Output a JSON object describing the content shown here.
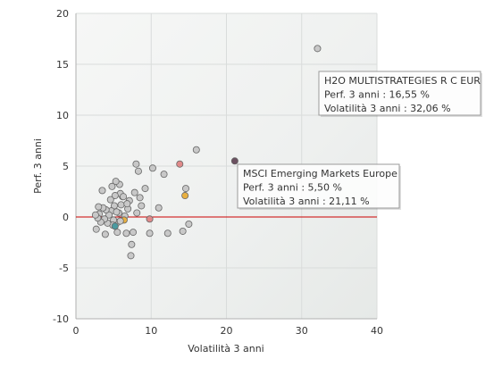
{
  "chart_data": {
    "type": "scatter",
    "xlabel": "Volatilità 3 anni",
    "ylabel": "Perf. 3 anni",
    "xlim": [
      0,
      40
    ],
    "ylim": [
      -10,
      20
    ],
    "x_ticks": [
      "0",
      "10",
      "20",
      "30",
      "40"
    ],
    "y_ticks": [
      "-10",
      "-5",
      "0",
      "5",
      "10",
      "15",
      "20"
    ],
    "x_tick_values": [
      0,
      10,
      20,
      30,
      40
    ],
    "y_tick_values": [
      -10,
      -5,
      0,
      5,
      10,
      15,
      20
    ],
    "grid": true,
    "zero_line_color": "#cc0000",
    "colors": {
      "default_point": "#c8c8c8",
      "point_stroke": "#666666",
      "highlight_point": "#6b5060",
      "pink_point": "#e08a8a",
      "orange_point": "#e8b040",
      "teal_point": "#4a9aa0"
    },
    "points": [
      {
        "x": 32.1,
        "y": 16.55,
        "color": "default_point"
      },
      {
        "x": 21.11,
        "y": 5.5,
        "color": "highlight_point"
      },
      {
        "x": 16.0,
        "y": 6.6,
        "color": "default_point"
      },
      {
        "x": 13.8,
        "y": 5.2,
        "color": "pink_point"
      },
      {
        "x": 14.5,
        "y": 2.1,
        "color": "orange_point"
      },
      {
        "x": 14.6,
        "y": 2.8,
        "color": "default_point"
      },
      {
        "x": 15.0,
        "y": -0.7,
        "color": "default_point"
      },
      {
        "x": 14.2,
        "y": -1.4,
        "color": "default_point"
      },
      {
        "x": 12.2,
        "y": -1.6,
        "color": "default_point"
      },
      {
        "x": 11.7,
        "y": 4.2,
        "color": "default_point"
      },
      {
        "x": 11.0,
        "y": 0.9,
        "color": "default_point"
      },
      {
        "x": 10.2,
        "y": 4.8,
        "color": "default_point"
      },
      {
        "x": 9.8,
        "y": -1.6,
        "color": "default_point"
      },
      {
        "x": 9.8,
        "y": -0.2,
        "color": "pink_point"
      },
      {
        "x": 9.2,
        "y": 2.8,
        "color": "default_point"
      },
      {
        "x": 8.7,
        "y": 1.1,
        "color": "default_point"
      },
      {
        "x": 8.5,
        "y": 1.9,
        "color": "default_point"
      },
      {
        "x": 8.3,
        "y": 4.5,
        "color": "default_point"
      },
      {
        "x": 8.0,
        "y": 5.2,
        "color": "default_point"
      },
      {
        "x": 8.1,
        "y": 0.4,
        "color": "default_point"
      },
      {
        "x": 7.8,
        "y": 2.4,
        "color": "default_point"
      },
      {
        "x": 7.6,
        "y": -1.5,
        "color": "default_point"
      },
      {
        "x": 7.4,
        "y": -2.7,
        "color": "default_point"
      },
      {
        "x": 7.3,
        "y": -3.8,
        "color": "default_point"
      },
      {
        "x": 7.1,
        "y": 1.6,
        "color": "default_point"
      },
      {
        "x": 6.9,
        "y": 0.8,
        "color": "default_point"
      },
      {
        "x": 6.7,
        "y": -1.6,
        "color": "default_point"
      },
      {
        "x": 6.5,
        "y": 0.1,
        "color": "default_point"
      },
      {
        "x": 6.4,
        "y": -0.3,
        "color": "orange_point"
      },
      {
        "x": 6.2,
        "y": 2.0,
        "color": "default_point"
      },
      {
        "x": 6.0,
        "y": 1.2,
        "color": "default_point"
      },
      {
        "x": 5.9,
        "y": 2.3,
        "color": "default_point"
      },
      {
        "x": 5.8,
        "y": 3.2,
        "color": "default_point"
      },
      {
        "x": 5.7,
        "y": 0.4,
        "color": "default_point"
      },
      {
        "x": 5.6,
        "y": -0.5,
        "color": "default_point"
      },
      {
        "x": 5.5,
        "y": -1.5,
        "color": "default_point"
      },
      {
        "x": 5.3,
        "y": 3.5,
        "color": "default_point"
      },
      {
        "x": 5.2,
        "y": 2.1,
        "color": "default_point"
      },
      {
        "x": 5.1,
        "y": 1.1,
        "color": "default_point"
      },
      {
        "x": 5.0,
        "y": -0.3,
        "color": "default_point"
      },
      {
        "x": 4.9,
        "y": -0.8,
        "color": "default_point"
      },
      {
        "x": 5.2,
        "y": -0.9,
        "color": "teal_point"
      },
      {
        "x": 4.7,
        "y": 0.6,
        "color": "default_point"
      },
      {
        "x": 4.6,
        "y": 1.7,
        "color": "default_point"
      },
      {
        "x": 4.4,
        "y": 0.2,
        "color": "default_point"
      },
      {
        "x": 4.2,
        "y": -0.6,
        "color": "default_point"
      },
      {
        "x": 4.0,
        "y": 0.7,
        "color": "default_point"
      },
      {
        "x": 3.9,
        "y": -1.7,
        "color": "default_point"
      },
      {
        "x": 3.8,
        "y": -0.2,
        "color": "default_point"
      },
      {
        "x": 3.6,
        "y": 0.9,
        "color": "default_point"
      },
      {
        "x": 3.5,
        "y": 2.6,
        "color": "default_point"
      },
      {
        "x": 3.3,
        "y": -0.5,
        "color": "default_point"
      },
      {
        "x": 3.1,
        "y": 0.3,
        "color": "default_point"
      },
      {
        "x": 3.0,
        "y": 1.0,
        "color": "default_point"
      },
      {
        "x": 2.9,
        "y": -0.1,
        "color": "default_point"
      },
      {
        "x": 2.7,
        "y": -1.2,
        "color": "default_point"
      },
      {
        "x": 2.6,
        "y": 0.2,
        "color": "default_point"
      },
      {
        "x": 6.3,
        "y": 2.0,
        "color": "default_point"
      },
      {
        "x": 6.8,
        "y": 1.3,
        "color": "default_point"
      },
      {
        "x": 4.8,
        "y": 3.0,
        "color": "default_point"
      },
      {
        "x": 5.4,
        "y": 0.5,
        "color": "default_point"
      },
      {
        "x": 5.9,
        "y": -0.4,
        "color": "default_point"
      }
    ],
    "tooltips": [
      {
        "x": 32.1,
        "y": 16.55,
        "lines": [
          "H2O MULTISTRATEGIES R C EUR",
          "Perf. 3 anni : 16,55 %",
          "Volatilità 3 anni : 32,06 %"
        ]
      },
      {
        "x": 21.11,
        "y": 5.5,
        "lines": [
          "MSCI Emerging Markets Europe",
          "Perf. 3 anni : 5,50 %",
          "Volatilità 3 anni : 21,11 %"
        ]
      }
    ]
  }
}
